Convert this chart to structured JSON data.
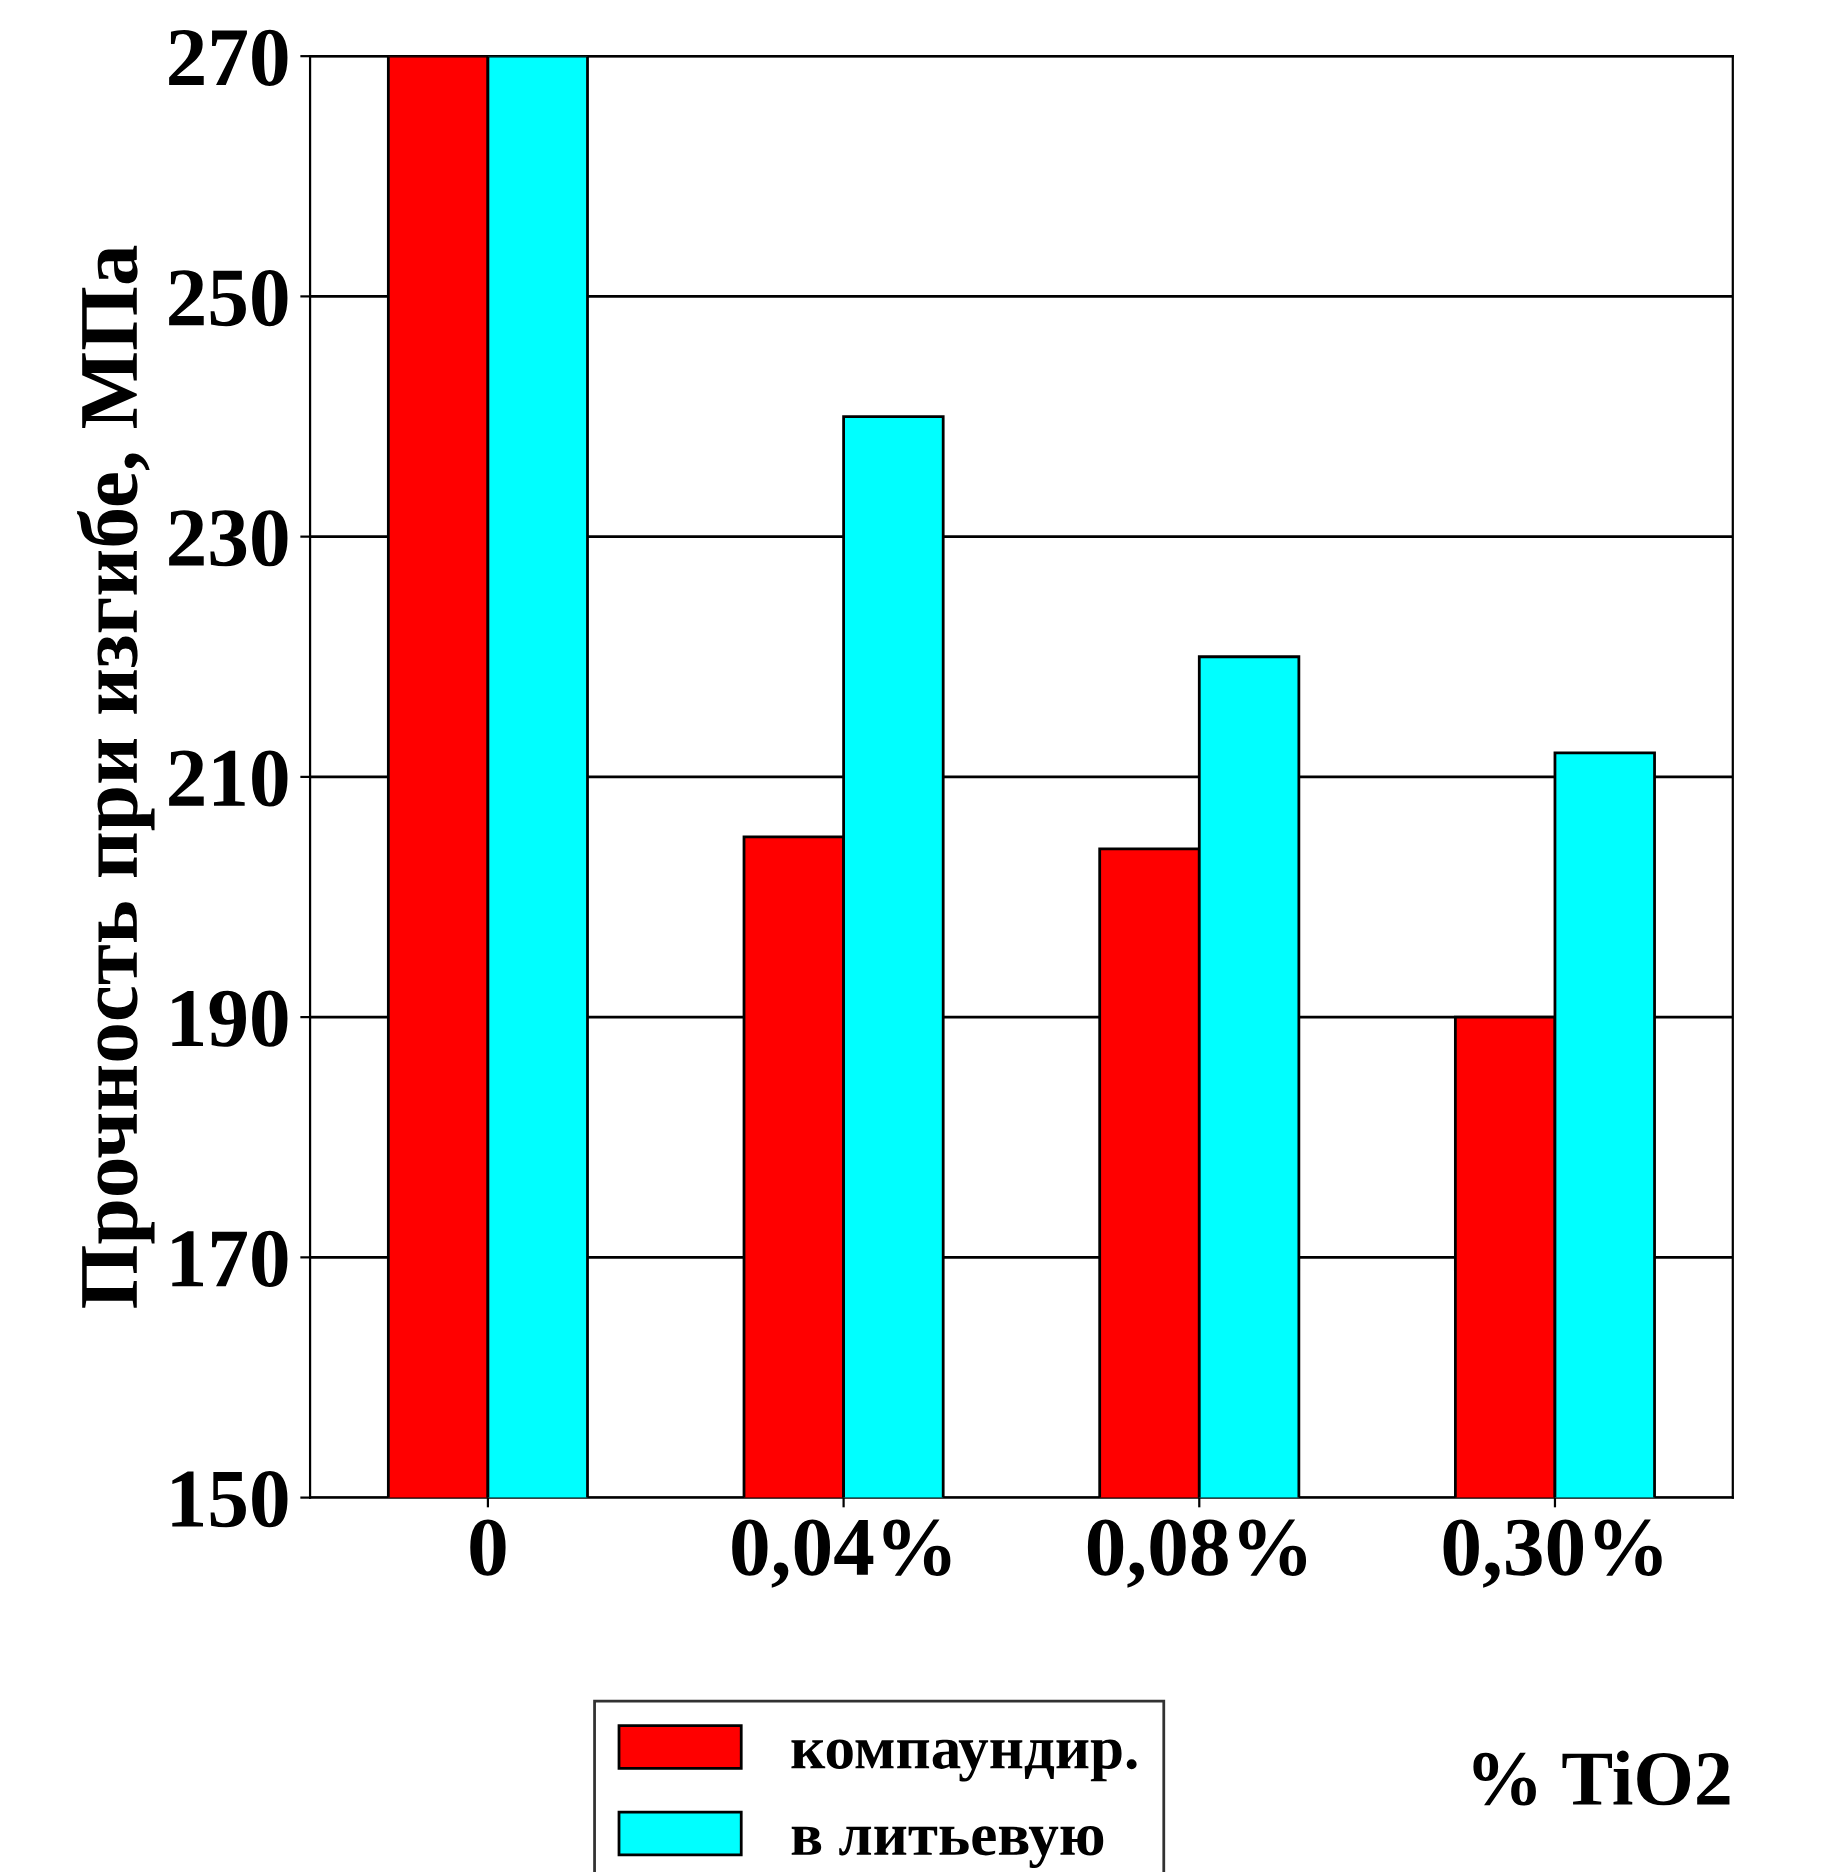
{
  "chart_data": {
    "type": "bar",
    "ylabel": "Прочность при изгибе, МПа",
    "xlabel": "% TiO2",
    "categories": [
      "0",
      "0,04%",
      "0,08%",
      "0,30%"
    ],
    "series": [
      {
        "name": "компаундир.",
        "color": "#ff0000",
        "values": [
          270,
          205,
          204,
          190
        ]
      },
      {
        "name": "в литьевую",
        "color": "#00ffff",
        "values": [
          270,
          240,
          220,
          212
        ]
      }
    ],
    "ylim": [
      150,
      270
    ],
    "yticks": [
      150,
      170,
      190,
      210,
      230,
      250,
      270
    ],
    "grid": "y",
    "legend": "bottom"
  }
}
